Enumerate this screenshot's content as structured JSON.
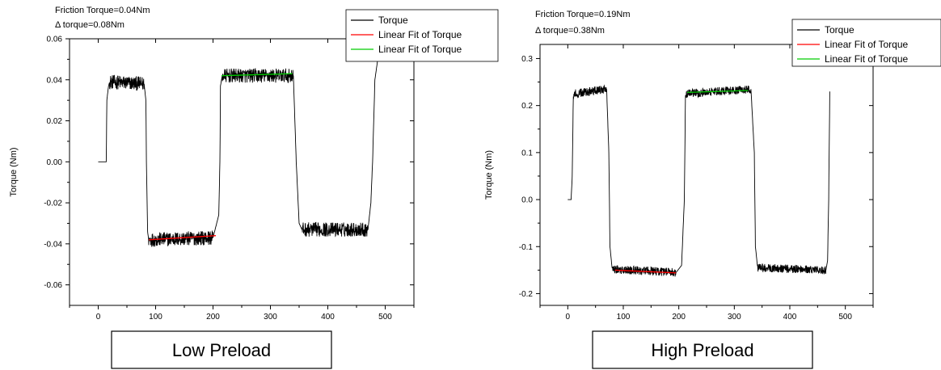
{
  "chart_data": [
    {
      "type": "line",
      "annotations": [
        "Friction Torque=0.04Nm",
        "Δ torque=0.08Nm"
      ],
      "xlabel": "",
      "ylabel": "Torque (Nm)",
      "xlim": [
        -50,
        550
      ],
      "ylim": [
        -0.07,
        0.06
      ],
      "xticks": [
        0,
        100,
        200,
        300,
        400,
        500
      ],
      "yticks": [
        -0.06,
        -0.04,
        -0.02,
        0.0,
        0.02,
        0.04,
        0.06
      ],
      "ytick_labels": [
        "-0.06",
        "-0.04",
        "-0.02",
        "0.00",
        "0.02",
        "0.04",
        "0.06"
      ],
      "legend": {
        "position": "top-right",
        "entries": [
          {
            "label": "Torque",
            "color": "#000000"
          },
          {
            "label": "Linear Fit of Torque",
            "color": "#ff0000"
          },
          {
            "label": "Linear Fit of Torque",
            "color": "#00cc00"
          }
        ]
      },
      "series": [
        {
          "name": "Torque",
          "color": "#000000",
          "x": [
            0,
            10,
            14,
            15,
            18,
            20,
            80,
            83,
            84,
            86,
            88,
            200,
            210,
            212,
            213,
            216,
            340,
            345,
            350,
            355,
            470,
            475,
            478,
            482,
            487
          ],
          "y": [
            0.0,
            0.0,
            0.0,
            0.03,
            0.037,
            0.039,
            0.038,
            0.03,
            0.0,
            -0.034,
            -0.038,
            -0.037,
            -0.026,
            0.0,
            0.037,
            0.042,
            0.042,
            0.0,
            -0.03,
            -0.033,
            -0.033,
            -0.02,
            0.0,
            0.04,
            0.05
          ],
          "noise": 0.007
        },
        {
          "name": "Linear Fit of Torque",
          "color": "#ff0000",
          "x": [
            88,
            205
          ],
          "y": [
            -0.038,
            -0.036
          ]
        },
        {
          "name": "Linear Fit of Torque",
          "color": "#00cc00",
          "x": [
            215,
            338
          ],
          "y": [
            0.042,
            0.043
          ]
        }
      ],
      "caption": "Low Preload"
    },
    {
      "type": "line",
      "annotations": [
        "Friction Torque=0.19Nm",
        "Δ torque=0.38Nm"
      ],
      "xlabel": "",
      "ylabel": "Torque (Nm)",
      "xlim": [
        -50,
        550
      ],
      "ylim": [
        -0.225,
        0.33
      ],
      "xticks": [
        0,
        100,
        200,
        300,
        400,
        500
      ],
      "yticks": [
        -0.2,
        -0.1,
        0.0,
        0.1,
        0.2,
        0.3
      ],
      "ytick_labels": [
        "-0.2",
        "-0.1",
        "0.0",
        "0.1",
        "0.2",
        "0.3"
      ],
      "legend": {
        "position": "top-right",
        "entries": [
          {
            "label": "Torque",
            "color": "#000000"
          },
          {
            "label": "Linear Fit of Torque",
            "color": "#ff0000"
          },
          {
            "label": "Linear Fit of Torque",
            "color": "#00cc00"
          }
        ]
      },
      "series": [
        {
          "name": "Torque",
          "color": "#000000",
          "x": [
            0,
            6,
            8,
            10,
            70,
            74,
            76,
            80,
            195,
            205,
            210,
            212,
            330,
            336,
            338,
            342,
            465,
            468,
            470,
            472
          ],
          "y": [
            0.0,
            0.0,
            0.05,
            0.225,
            0.235,
            0.1,
            -0.1,
            -0.148,
            -0.155,
            -0.14,
            0.0,
            0.225,
            0.235,
            0.1,
            -0.1,
            -0.145,
            -0.15,
            -0.13,
            0.0,
            0.23
          ],
          "noise": 0.018
        },
        {
          "name": "Linear Fit of Torque",
          "color": "#ff0000",
          "x": [
            85,
            195
          ],
          "y": [
            -0.15,
            -0.156
          ]
        },
        {
          "name": "Linear Fit of Torque",
          "color": "#00cc00",
          "x": [
            215,
            325
          ],
          "y": [
            0.228,
            0.232
          ]
        }
      ],
      "caption": "High Preload"
    }
  ]
}
